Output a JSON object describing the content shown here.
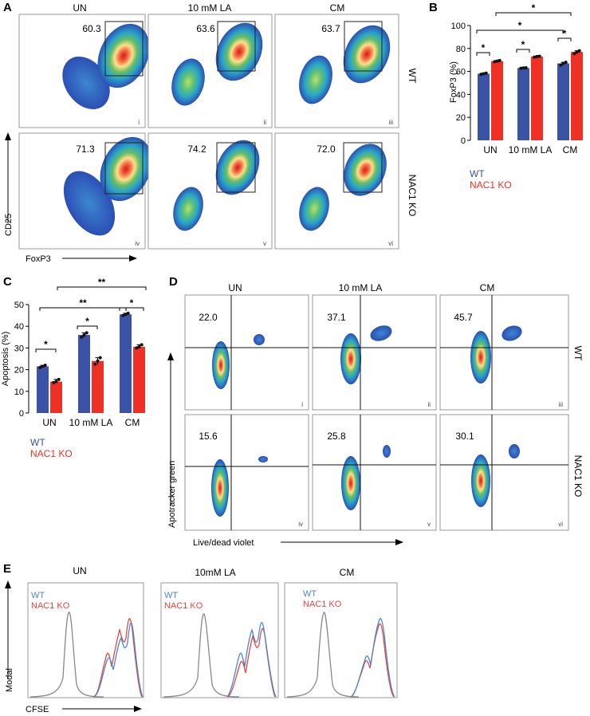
{
  "panels": {
    "A": {
      "letter": "A",
      "columns": [
        "UN",
        "10 mM LA",
        "CM"
      ],
      "rows": [
        "WT",
        "NAC1 KO"
      ],
      "numerals": [
        "i",
        "ii",
        "iii",
        "iv",
        "v",
        "vi"
      ],
      "gate_values": [
        "60.3",
        "63.6",
        "63.7",
        "71.3",
        "74.2",
        "72.0"
      ],
      "y_axis_label": "CD25",
      "x_axis_label": "FoxP3"
    },
    "D": {
      "letter": "D",
      "columns": [
        "UN",
        "10 mM LA",
        "CM"
      ],
      "rows": [
        "WT",
        "NAC1 KO"
      ],
      "numerals": [
        "i",
        "ii",
        "iii",
        "iv",
        "v",
        "vi"
      ],
      "quadrant_values": [
        "22.0",
        "37.1",
        "45.7",
        "15.6",
        "25.8",
        "30.1"
      ],
      "y_axis_label": "Apotracker green",
      "x_axis_label": "Live/dead violet"
    },
    "E": {
      "letter": "E",
      "columns": [
        "UN",
        "10mM LA",
        "CM"
      ],
      "legend": [
        "WT",
        "NAC1 KO"
      ],
      "y_axis_label": "Modal",
      "x_axis_label": "CFSE"
    }
  },
  "chart_data": [
    {
      "panel": "B",
      "letter": "B",
      "type": "bar",
      "categories": [
        "UN",
        "10 mM LA",
        "CM"
      ],
      "series": [
        {
          "name": "WT",
          "color": "#3a53a4",
          "values": [
            58,
            63,
            67
          ],
          "points": [
            [
              57.5,
              58,
              58.5
            ],
            [
              62.8,
              63,
              63.2
            ],
            [
              65.5,
              67,
              68
            ]
          ]
        },
        {
          "name": "NAC1 KO",
          "color": "#ee3124",
          "values": [
            69,
            73,
            77
          ],
          "points": [
            [
              68.5,
              69,
              69.5
            ],
            [
              72.5,
              73,
              73.3
            ],
            [
              75.5,
              77,
              78
            ]
          ]
        }
      ],
      "ylabel": "FoxP3 (%)",
      "ylim": [
        0,
        100
      ],
      "yticks": [
        "0",
        "20",
        "40",
        "60",
        "80",
        "100"
      ],
      "significance": [
        "*",
        "*",
        "*",
        "*",
        "*"
      ]
    },
    {
      "panel": "C",
      "letter": "C",
      "type": "bar",
      "categories": [
        "UN",
        "10 mM LA",
        "CM"
      ],
      "series": [
        {
          "name": "WT",
          "color": "#3a53a4",
          "values": [
            21.5,
            36,
            45.5
          ],
          "points": [
            [
              21,
              21.5,
              22
            ],
            [
              35,
              36,
              37
            ],
            [
              45,
              45.5,
              46
            ]
          ]
        },
        {
          "name": "NAC1 KO",
          "color": "#ee3124",
          "values": [
            14.5,
            24,
            30.5
          ],
          "points": [
            [
              14,
              14.5,
              15.5
            ],
            [
              22.5,
              24,
              25.5
            ],
            [
              30,
              30.5,
              31.5
            ]
          ]
        }
      ],
      "ylabel": "Apoptosis (%)",
      "ylim": [
        0,
        50
      ],
      "yticks": [
        "0",
        "10",
        "20",
        "30",
        "40",
        "50"
      ],
      "significance": [
        "*",
        "*",
        "*",
        "**",
        "**"
      ]
    }
  ]
}
